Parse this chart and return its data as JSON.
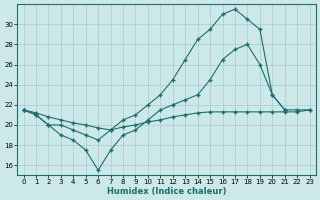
{
  "xlabel": "Humidex (Indice chaleur)",
  "ylabel": "",
  "background_color": "#cde8e8",
  "grid_color": "#a8cccc",
  "line_color": "#1a6e6e",
  "x_values": [
    0,
    1,
    2,
    3,
    4,
    5,
    6,
    7,
    8,
    9,
    10,
    11,
    12,
    13,
    14,
    15,
    16,
    17,
    18,
    19,
    20,
    21,
    22,
    23
  ],
  "line1_y": [
    21.5,
    21.0,
    20.0,
    19.0,
    18.5,
    17.5,
    15.5,
    17.5,
    19.0,
    19.5,
    20.5,
    21.5,
    22.0,
    22.5,
    23.0,
    24.5,
    26.5,
    27.5,
    28.0,
    26.0,
    23.0,
    21.5,
    21.5,
    21.5
  ],
  "line2_x": [
    0,
    1,
    2,
    3,
    4,
    5,
    6,
    7,
    8,
    9,
    10,
    11,
    12,
    13,
    14,
    15,
    16,
    17,
    18,
    19,
    20,
    21
  ],
  "line2_y": [
    21.5,
    21.0,
    20.0,
    20.0,
    19.5,
    19.0,
    18.5,
    19.5,
    20.5,
    21.0,
    22.0,
    23.0,
    24.5,
    26.5,
    28.5,
    29.5,
    31.0,
    31.5,
    30.5,
    29.5,
    23.0,
    21.5
  ],
  "line3_y": [
    21.5,
    21.2,
    20.8,
    20.5,
    20.2,
    20.0,
    19.7,
    19.5,
    19.8,
    20.0,
    20.3,
    20.5,
    20.8,
    21.0,
    21.2,
    21.3,
    21.3,
    21.3,
    21.3,
    21.3,
    21.3,
    21.3,
    21.3,
    21.5
  ],
  "ylim": [
    15.0,
    32.0
  ],
  "yticks": [
    16,
    18,
    20,
    22,
    24,
    26,
    28,
    30
  ],
  "xlim": [
    -0.5,
    23.5
  ],
  "xticks": [
    0,
    1,
    2,
    3,
    4,
    5,
    6,
    7,
    8,
    9,
    10,
    11,
    12,
    13,
    14,
    15,
    16,
    17,
    18,
    19,
    20,
    21,
    22,
    23
  ]
}
